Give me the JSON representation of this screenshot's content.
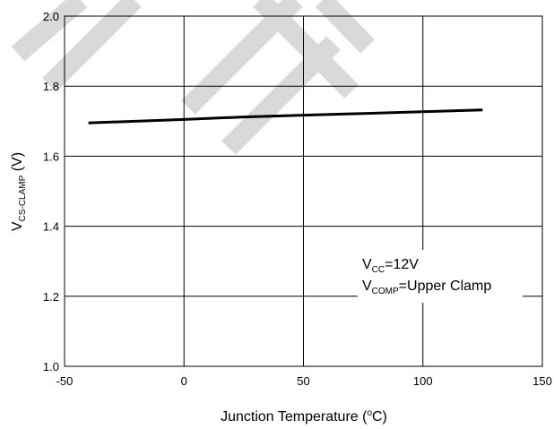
{
  "chart_data": {
    "type": "line",
    "xlabel": {
      "prefix": "Junction Temperature (",
      "sup": "o",
      "suffix": "C)"
    },
    "ylabel": {
      "base": "V",
      "sub": "CS-CLAMP",
      "suffix": " (V)"
    },
    "xlim": [
      -50,
      150
    ],
    "ylim": [
      1.0,
      2.0
    ],
    "xticks": [
      -50,
      0,
      50,
      100,
      150
    ],
    "xtick_labels": [
      "-50",
      "0",
      "50",
      "100",
      "150"
    ],
    "yticks": [
      1.0,
      1.2,
      1.4,
      1.6,
      1.8,
      2.0
    ],
    "ytick_labels": [
      "1.0",
      "1.2",
      "1.4",
      "1.6",
      "1.8",
      "2.0"
    ],
    "grid": true,
    "series": [
      {
        "x": [
          -40,
          0,
          25,
          50,
          75,
          100,
          125
        ],
        "y": [
          1.695,
          1.705,
          1.712,
          1.717,
          1.722,
          1.727,
          1.732
        ]
      }
    ],
    "annotations": [
      {
        "base": "V",
        "sub": "CC",
        "rest": "=12V"
      },
      {
        "base": "V",
        "sub": "COMP",
        "rest": "=Upper Clamp"
      }
    ],
    "colors": {
      "line": "#000000",
      "grid": "#000000",
      "watermark": "#d9d9d9"
    }
  }
}
